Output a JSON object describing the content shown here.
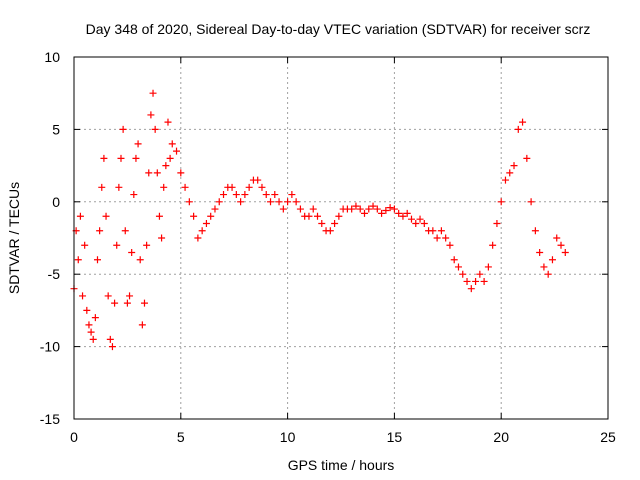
{
  "chart_data": {
    "type": "scatter",
    "title": "Day 348 of 2020, Sidereal Day-to-day VTEC variation (SDTVAR) for receiver scrz",
    "xlabel": "GPS time / hours",
    "ylabel": "SDTVAR / TECUs",
    "xlim": [
      0,
      25
    ],
    "ylim": [
      -15,
      10
    ],
    "xticks": [
      0,
      5,
      10,
      15,
      20,
      25
    ],
    "yticks": [
      -15,
      -10,
      -5,
      0,
      5,
      10
    ],
    "xtick_labels": [
      "0",
      "5",
      "10",
      "15",
      "20",
      "25"
    ],
    "ytick_labels": [
      "-15",
      "-10",
      "-5",
      "0",
      "5",
      "10"
    ],
    "grid": true,
    "marker": "+",
    "series": [
      {
        "name": "SDTVAR",
        "color": "#ff0000",
        "points": [
          [
            0.0,
            -6.0
          ],
          [
            0.1,
            -2.0
          ],
          [
            0.2,
            -4.0
          ],
          [
            0.3,
            -1.0
          ],
          [
            0.4,
            -6.5
          ],
          [
            0.5,
            -3.0
          ],
          [
            0.6,
            -7.5
          ],
          [
            0.7,
            -8.5
          ],
          [
            0.8,
            -9.0
          ],
          [
            0.9,
            -9.5
          ],
          [
            1.0,
            -8.0
          ],
          [
            1.1,
            -4.0
          ],
          [
            1.2,
            -2.0
          ],
          [
            1.3,
            1.0
          ],
          [
            1.4,
            3.0
          ],
          [
            1.5,
            -1.0
          ],
          [
            1.6,
            -6.5
          ],
          [
            1.7,
            -9.5
          ],
          [
            1.8,
            -10.0
          ],
          [
            1.9,
            -7.0
          ],
          [
            2.0,
            -3.0
          ],
          [
            2.1,
            1.0
          ],
          [
            2.2,
            3.0
          ],
          [
            2.3,
            5.0
          ],
          [
            2.4,
            -2.0
          ],
          [
            2.5,
            -7.0
          ],
          [
            2.6,
            -6.5
          ],
          [
            2.7,
            -3.5
          ],
          [
            2.8,
            0.5
          ],
          [
            2.9,
            3.0
          ],
          [
            3.0,
            4.0
          ],
          [
            3.1,
            -4.0
          ],
          [
            3.2,
            -8.5
          ],
          [
            3.3,
            -7.0
          ],
          [
            3.4,
            -3.0
          ],
          [
            3.5,
            2.0
          ],
          [
            3.6,
            6.0
          ],
          [
            3.7,
            7.5
          ],
          [
            3.8,
            5.0
          ],
          [
            3.9,
            2.0
          ],
          [
            4.0,
            -1.0
          ],
          [
            4.1,
            -2.5
          ],
          [
            4.2,
            1.0
          ],
          [
            4.3,
            2.5
          ],
          [
            4.4,
            5.5
          ],
          [
            4.5,
            3.0
          ],
          [
            4.6,
            4.0
          ],
          [
            4.8,
            3.5
          ],
          [
            5.0,
            2.0
          ],
          [
            5.2,
            1.0
          ],
          [
            5.4,
            0.0
          ],
          [
            5.6,
            -1.0
          ],
          [
            5.8,
            -2.5
          ],
          [
            6.0,
            -2.0
          ],
          [
            6.2,
            -1.5
          ],
          [
            6.4,
            -1.0
          ],
          [
            6.6,
            -0.5
          ],
          [
            6.8,
            0.0
          ],
          [
            7.0,
            0.5
          ],
          [
            7.2,
            1.0
          ],
          [
            7.4,
            1.0
          ],
          [
            7.6,
            0.5
          ],
          [
            7.8,
            0.0
          ],
          [
            8.0,
            0.5
          ],
          [
            8.2,
            1.0
          ],
          [
            8.4,
            1.5
          ],
          [
            8.6,
            1.5
          ],
          [
            8.8,
            1.0
          ],
          [
            9.0,
            0.5
          ],
          [
            9.2,
            0.0
          ],
          [
            9.4,
            0.5
          ],
          [
            9.6,
            0.0
          ],
          [
            9.8,
            -0.5
          ],
          [
            10.0,
            0.0
          ],
          [
            10.2,
            0.5
          ],
          [
            10.4,
            0.0
          ],
          [
            10.6,
            -0.5
          ],
          [
            10.8,
            -1.0
          ],
          [
            11.0,
            -1.0
          ],
          [
            11.2,
            -0.5
          ],
          [
            11.4,
            -1.0
          ],
          [
            11.6,
            -1.5
          ],
          [
            11.8,
            -2.0
          ],
          [
            12.0,
            -2.0
          ],
          [
            12.2,
            -1.5
          ],
          [
            12.4,
            -1.0
          ],
          [
            12.6,
            -0.5
          ],
          [
            12.8,
            -0.5
          ],
          [
            13.0,
            -0.5
          ],
          [
            13.2,
            -0.3
          ],
          [
            13.4,
            -0.5
          ],
          [
            13.6,
            -0.8
          ],
          [
            13.8,
            -0.5
          ],
          [
            14.0,
            -0.3
          ],
          [
            14.2,
            -0.5
          ],
          [
            14.4,
            -0.8
          ],
          [
            14.6,
            -0.6
          ],
          [
            14.8,
            -0.4
          ],
          [
            15.0,
            -0.5
          ],
          [
            15.2,
            -0.8
          ],
          [
            15.4,
            -1.0
          ],
          [
            15.6,
            -0.8
          ],
          [
            15.8,
            -1.2
          ],
          [
            16.0,
            -1.5
          ],
          [
            16.2,
            -1.2
          ],
          [
            16.4,
            -1.5
          ],
          [
            16.6,
            -2.0
          ],
          [
            16.8,
            -2.0
          ],
          [
            17.0,
            -2.5
          ],
          [
            17.2,
            -2.0
          ],
          [
            17.4,
            -2.5
          ],
          [
            17.6,
            -3.0
          ],
          [
            17.8,
            -4.0
          ],
          [
            18.0,
            -4.5
          ],
          [
            18.2,
            -5.0
          ],
          [
            18.4,
            -5.5
          ],
          [
            18.6,
            -6.0
          ],
          [
            18.8,
            -5.5
          ],
          [
            19.0,
            -5.0
          ],
          [
            19.2,
            -5.5
          ],
          [
            19.4,
            -4.5
          ],
          [
            19.6,
            -3.0
          ],
          [
            19.8,
            -1.5
          ],
          [
            20.0,
            0.0
          ],
          [
            20.2,
            1.5
          ],
          [
            20.4,
            2.0
          ],
          [
            20.6,
            2.5
          ],
          [
            20.8,
            5.0
          ],
          [
            21.0,
            5.5
          ],
          [
            21.2,
            3.0
          ],
          [
            21.4,
            0.0
          ],
          [
            21.6,
            -2.0
          ],
          [
            21.8,
            -3.5
          ],
          [
            22.0,
            -4.5
          ],
          [
            22.2,
            -5.0
          ],
          [
            22.4,
            -4.0
          ],
          [
            22.6,
            -2.5
          ],
          [
            22.8,
            -3.0
          ],
          [
            23.0,
            -3.5
          ]
        ]
      }
    ]
  }
}
